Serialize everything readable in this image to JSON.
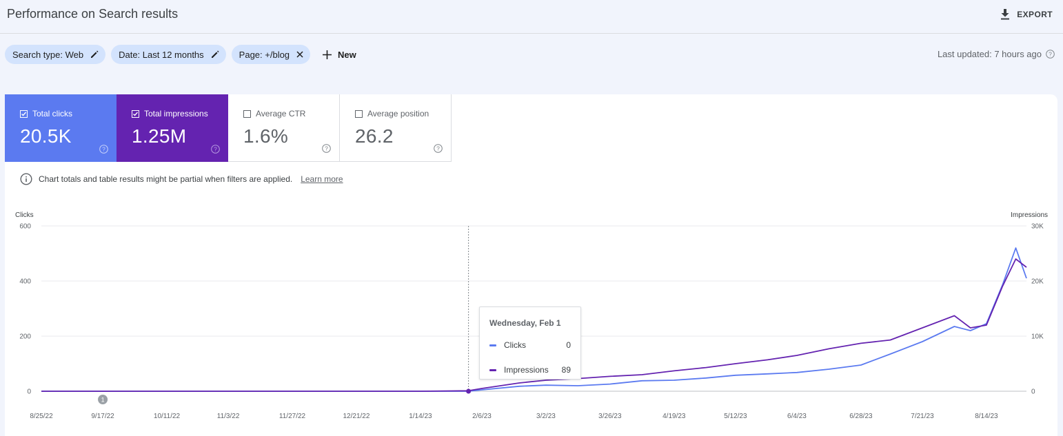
{
  "header": {
    "title": "Performance on Search results",
    "export_label": "EXPORT"
  },
  "filters": {
    "chips": [
      {
        "label": "Search type: Web",
        "action_icon": "pencil-icon"
      },
      {
        "label": "Date: Last 12 months",
        "action_icon": "pencil-icon"
      },
      {
        "label": "Page: +/blog",
        "action_icon": "close-icon"
      }
    ],
    "new_label": "New",
    "last_updated": "Last updated: 7 hours ago"
  },
  "metrics": [
    {
      "label": "Total clicks",
      "value": "20.5K",
      "checked": true,
      "color": "#5b7af0"
    },
    {
      "label": "Total impressions",
      "value": "1.25M",
      "checked": true,
      "color": "#6423b0"
    },
    {
      "label": "Average CTR",
      "value": "1.6%",
      "checked": false
    },
    {
      "label": "Average position",
      "value": "26.2",
      "checked": false
    }
  ],
  "notice": {
    "text": "Chart totals and table results might be partial when filters are applied.",
    "link": "Learn more"
  },
  "tooltip": {
    "date": "Wednesday, Feb 1",
    "rows": [
      {
        "label": "Clicks",
        "value": "0"
      },
      {
        "label": "Impressions",
        "value": "89"
      }
    ]
  },
  "colors": {
    "clicks": "#5b7af0",
    "impressions": "#6423b0",
    "accent_chip": "#d3e3fd"
  },
  "chart_data": {
    "type": "line",
    "left_axis_title": "Clicks",
    "right_axis_title": "Impressions",
    "left_ticks": [
      "0",
      "200",
      "400",
      "600"
    ],
    "right_ticks": [
      "0",
      "10K",
      "20K",
      "30K"
    ],
    "ylim_left": [
      0,
      600
    ],
    "ylim_right": [
      0,
      30000
    ],
    "grid": true,
    "x_ticks": [
      "8/25/22",
      "9/17/22",
      "10/11/22",
      "11/3/22",
      "11/27/22",
      "12/21/22",
      "1/14/23",
      "2/6/23",
      "3/2/23",
      "3/26/23",
      "4/19/23",
      "5/12/23",
      "6/4/23",
      "6/28/23",
      "7/21/23",
      "8/14/23"
    ],
    "annotation_marker": {
      "label": "1",
      "date": "9/17/22"
    },
    "hover_date": "2/1/23",
    "series": [
      {
        "name": "Clicks",
        "axis": "left",
        "x": [
          "8/25/22",
          "1/14/23",
          "2/1/23",
          "2/6/23",
          "2/20/23",
          "3/2/23",
          "3/14/23",
          "3/26/23",
          "4/7/23",
          "4/19/23",
          "5/1/23",
          "5/12/23",
          "5/24/23",
          "6/4/23",
          "6/16/23",
          "6/28/23",
          "7/9/23",
          "7/21/23",
          "8/2/23",
          "8/8/23",
          "8/14/23",
          "8/20/23",
          "8/25/23",
          "8/29/23"
        ],
        "values": [
          0,
          0,
          0,
          5,
          18,
          22,
          20,
          26,
          38,
          40,
          48,
          58,
          63,
          68,
          80,
          95,
          135,
          180,
          235,
          220,
          245,
          385,
          520,
          410
        ]
      },
      {
        "name": "Impressions",
        "axis": "right",
        "x": [
          "8/25/22",
          "1/14/23",
          "2/1/23",
          "2/6/23",
          "2/20/23",
          "3/2/23",
          "3/14/23",
          "3/26/23",
          "4/7/23",
          "4/19/23",
          "5/1/23",
          "5/12/23",
          "5/24/23",
          "6/4/23",
          "6/16/23",
          "6/28/23",
          "7/9/23",
          "7/21/23",
          "8/2/23",
          "8/8/23",
          "8/14/23",
          "8/20/23",
          "8/25/23",
          "8/29/23"
        ],
        "values": [
          0,
          0,
          89,
          500,
          1500,
          2000,
          2300,
          2700,
          3000,
          3700,
          4300,
          5000,
          5700,
          6500,
          7700,
          8700,
          9300,
          11500,
          13700,
          11500,
          12000,
          19000,
          24000,
          22500
        ]
      }
    ]
  }
}
